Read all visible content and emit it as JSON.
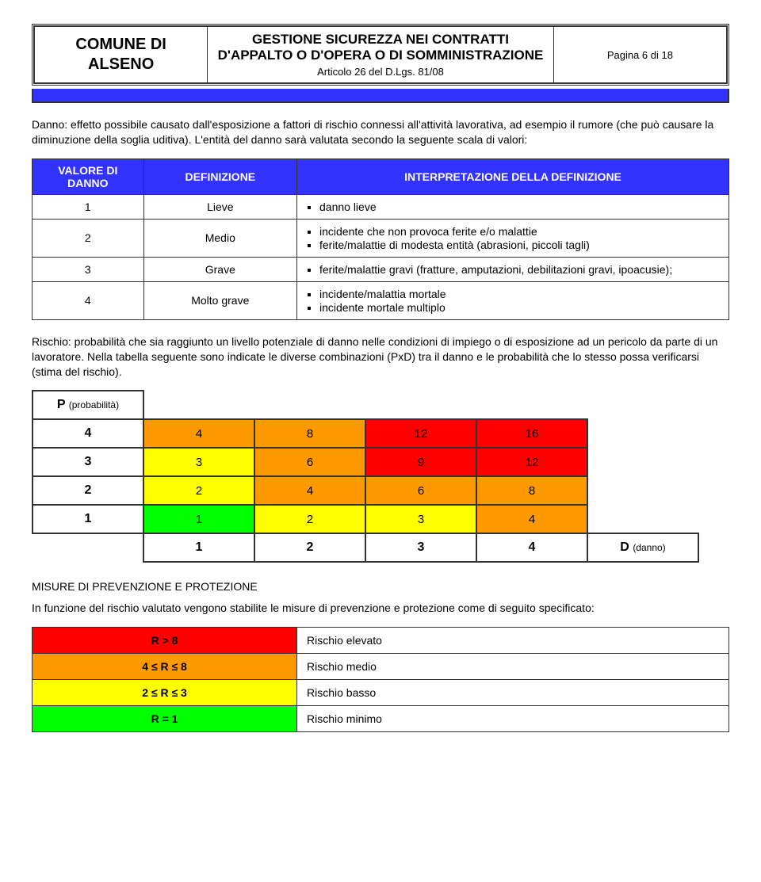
{
  "colors": {
    "blue": "#3333ff",
    "red": "#ff0000",
    "orange": "#ff9900",
    "yellow": "#ffff00",
    "green": "#00ff00",
    "white": "#ffffff"
  },
  "header": {
    "org_line1": "COMUNE DI",
    "org_line2": "ALSENO",
    "title": "GESTIONE SICUREZZA NEI CONTRATTI D'APPALTO O D'OPERA O DI SOMMINISTRAZIONE",
    "sub": "Articolo 26 del D.Lgs. 81/08",
    "page": "Pagina 6 di 18"
  },
  "para1": "Danno: effetto possibile causato dall'esposizione a fattori di rischio connessi all'attività lavorativa, ad esempio il rumore (che può causare la diminuzione della soglia uditiva). L'entità del danno sarà valutata secondo la seguente scala di valori:",
  "defTable": {
    "headers": [
      "VALORE DI DANNO",
      "DEFINIZIONE",
      "INTERPRETAZIONE DELLA DEFINIZIONE"
    ],
    "rows": [
      {
        "v": "1",
        "d": "Lieve",
        "items": [
          "danno lieve"
        ]
      },
      {
        "v": "2",
        "d": "Medio",
        "items": [
          "incidente che non provoca ferite e/o malattie",
          "ferite/malattie di modesta entità (abrasioni, piccoli tagli)"
        ]
      },
      {
        "v": "3",
        "d": "Grave",
        "items": [
          "ferite/malattie gravi (fratture, amputazioni, debilitazioni gravi, ipoacusie);"
        ]
      },
      {
        "v": "4",
        "d": "Molto grave",
        "items": [
          "incidente/malattia mortale",
          "incidente mortale multiplo"
        ]
      }
    ]
  },
  "para2": "Rischio: probabilità che sia raggiunto un livello potenziale di danno nelle condizioni di impiego o di esposizione ad un pericolo da parte di un lavoratore. Nella tabella seguente sono indicate le diverse combinazioni (PxD) tra il danno e le probabilità che lo stesso possa verificarsi (stima del rischio).",
  "matrix": {
    "rowLabel": "P",
    "rowLabelSub": "(probabilità)",
    "colLabel": "D",
    "colLabelSub": "(danno)",
    "rowHeaders": [
      "4",
      "3",
      "2",
      "1"
    ],
    "colHeaders": [
      "1",
      "2",
      "3",
      "4"
    ],
    "cells": [
      [
        {
          "v": "4",
          "c": "orange"
        },
        {
          "v": "8",
          "c": "orange"
        },
        {
          "v": "12",
          "c": "red"
        },
        {
          "v": "16",
          "c": "red"
        }
      ],
      [
        {
          "v": "3",
          "c": "yellow"
        },
        {
          "v": "6",
          "c": "orange"
        },
        {
          "v": "9",
          "c": "red"
        },
        {
          "v": "12",
          "c": "red"
        }
      ],
      [
        {
          "v": "2",
          "c": "yellow"
        },
        {
          "v": "4",
          "c": "orange"
        },
        {
          "v": "6",
          "c": "orange"
        },
        {
          "v": "8",
          "c": "orange"
        }
      ],
      [
        {
          "v": "1",
          "c": "green"
        },
        {
          "v": "2",
          "c": "yellow"
        },
        {
          "v": "3",
          "c": "yellow"
        },
        {
          "v": "4",
          "c": "orange"
        }
      ]
    ]
  },
  "section2": "MISURE DI PREVENZIONE E PROTEZIONE",
  "para3": "In funzione del rischio valutato vengono stabilite le misure di prevenzione e protezione come di seguito specificato:",
  "legend": [
    {
      "k": "R > 8",
      "t": "Rischio elevato",
      "c": "red"
    },
    {
      "k": "4 ≤ R ≤ 8",
      "t": "Rischio medio",
      "c": "orange"
    },
    {
      "k": "2 ≤ R ≤ 3",
      "t": "Rischio basso",
      "c": "yellow"
    },
    {
      "k": "R = 1",
      "t": "Rischio minimo",
      "c": "green"
    }
  ]
}
